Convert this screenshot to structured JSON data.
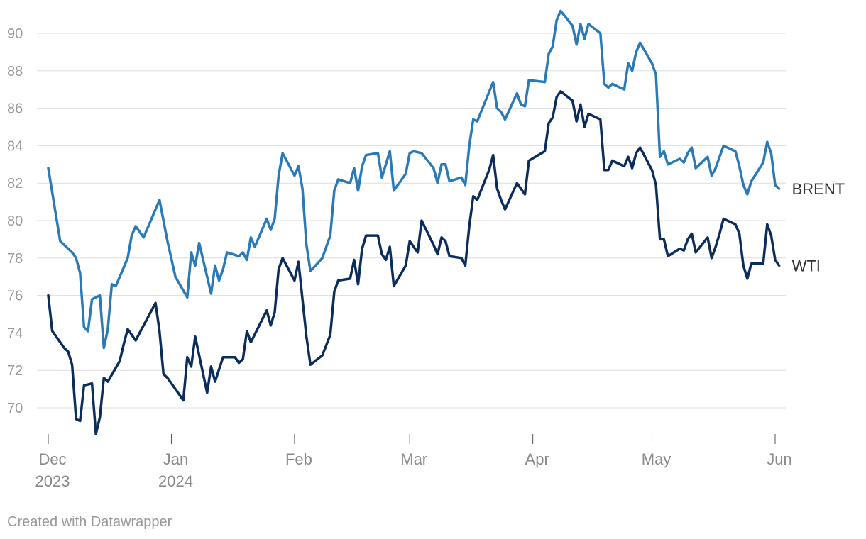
{
  "chart_data": {
    "type": "line",
    "title": "",
    "xlabel": "",
    "ylabel": "",
    "x_range": [
      "2023-12-01",
      "2024-06-01"
    ],
    "ylim": [
      68.6,
      91.4
    ],
    "y_ticks": [
      70,
      72,
      74,
      76,
      78,
      80,
      82,
      84,
      86,
      88,
      90
    ],
    "grid": true,
    "x_ticks": [
      {
        "date": "2023-12-01",
        "label": "Dec",
        "sublabel": "2023"
      },
      {
        "date": "2024-01-01",
        "label": "Jan",
        "sublabel": "2024"
      },
      {
        "date": "2024-02-01",
        "label": "Feb",
        "sublabel": ""
      },
      {
        "date": "2024-03-01",
        "label": "Mar",
        "sublabel": ""
      },
      {
        "date": "2024-04-01",
        "label": "Apr",
        "sublabel": ""
      },
      {
        "date": "2024-05-01",
        "label": "May",
        "sublabel": ""
      },
      {
        "date": "2024-06-01",
        "label": "Jun",
        "sublabel": ""
      }
    ],
    "legend": "direct labels at line ends",
    "series": [
      {
        "name": "BRENT",
        "color": "#2a7ab8",
        "points": [
          [
            "2023-12-01",
            82.8
          ],
          [
            "2023-12-04",
            78.9
          ],
          [
            "2023-12-05",
            78.7
          ],
          [
            "2023-12-06",
            78.5
          ],
          [
            "2023-12-07",
            78.3
          ],
          [
            "2023-12-08",
            78.0
          ],
          [
            "2023-12-09",
            77.2
          ],
          [
            "2023-12-10",
            74.3
          ],
          [
            "2023-12-11",
            74.1
          ],
          [
            "2023-12-12",
            75.8
          ],
          [
            "2023-12-14",
            76.0
          ],
          [
            "2023-12-15",
            73.2
          ],
          [
            "2023-12-16",
            74.2
          ],
          [
            "2023-12-17",
            76.6
          ],
          [
            "2023-12-18",
            76.5
          ],
          [
            "2023-12-21",
            78.0
          ],
          [
            "2023-12-22",
            79.2
          ],
          [
            "2023-12-23",
            79.7
          ],
          [
            "2023-12-25",
            79.1
          ],
          [
            "2023-12-29",
            81.1
          ],
          [
            "2023-12-31",
            78.9
          ],
          [
            "2024-01-02",
            77.0
          ],
          [
            "2024-01-05",
            75.9
          ],
          [
            "2024-01-06",
            78.3
          ],
          [
            "2024-01-07",
            77.6
          ],
          [
            "2024-01-08",
            78.8
          ],
          [
            "2024-01-11",
            76.1
          ],
          [
            "2024-01-12",
            77.6
          ],
          [
            "2024-01-13",
            76.8
          ],
          [
            "2024-01-14",
            77.4
          ],
          [
            "2024-01-15",
            78.3
          ],
          [
            "2024-01-18",
            78.1
          ],
          [
            "2024-01-19",
            78.3
          ],
          [
            "2024-01-20",
            77.9
          ],
          [
            "2024-01-21",
            79.1
          ],
          [
            "2024-01-22",
            78.6
          ],
          [
            "2024-01-25",
            80.1
          ],
          [
            "2024-01-26",
            79.5
          ],
          [
            "2024-01-27",
            80.1
          ],
          [
            "2024-01-28",
            82.4
          ],
          [
            "2024-01-29",
            83.6
          ],
          [
            "2024-02-01",
            82.4
          ],
          [
            "2024-02-02",
            82.9
          ],
          [
            "2024-02-03",
            81.7
          ],
          [
            "2024-02-04",
            78.7
          ],
          [
            "2024-02-05",
            77.3
          ],
          [
            "2024-02-08",
            78.0
          ],
          [
            "2024-02-10",
            79.2
          ],
          [
            "2024-02-11",
            81.6
          ],
          [
            "2024-02-12",
            82.2
          ],
          [
            "2024-02-15",
            82.0
          ],
          [
            "2024-02-16",
            82.8
          ],
          [
            "2024-02-17",
            81.6
          ],
          [
            "2024-02-18",
            82.9
          ],
          [
            "2024-02-19",
            83.5
          ],
          [
            "2024-02-22",
            83.6
          ],
          [
            "2024-02-23",
            82.3
          ],
          [
            "2024-02-25",
            83.7
          ],
          [
            "2024-02-26",
            81.6
          ],
          [
            "2024-02-29",
            82.5
          ],
          [
            "2024-03-01",
            83.6
          ],
          [
            "2024-03-02",
            83.7
          ],
          [
            "2024-03-04",
            83.6
          ],
          [
            "2024-03-07",
            82.8
          ],
          [
            "2024-03-08",
            82.0
          ],
          [
            "2024-03-09",
            83.0
          ],
          [
            "2024-03-10",
            83.0
          ],
          [
            "2024-03-11",
            82.1
          ],
          [
            "2024-03-14",
            82.3
          ],
          [
            "2024-03-15",
            81.9
          ],
          [
            "2024-03-16",
            84.0
          ],
          [
            "2024-03-17",
            85.4
          ],
          [
            "2024-03-18",
            85.3
          ],
          [
            "2024-03-22",
            87.4
          ],
          [
            "2024-03-23",
            86.0
          ],
          [
            "2024-03-24",
            85.8
          ],
          [
            "2024-03-25",
            85.4
          ],
          [
            "2024-03-28",
            86.8
          ],
          [
            "2024-03-29",
            86.2
          ],
          [
            "2024-03-30",
            86.1
          ],
          [
            "2024-03-31",
            87.5
          ],
          [
            "2024-04-04",
            87.4
          ],
          [
            "2024-04-05",
            88.9
          ],
          [
            "2024-04-06",
            89.3
          ],
          [
            "2024-04-07",
            90.7
          ],
          [
            "2024-04-08",
            91.2
          ],
          [
            "2024-04-11",
            90.4
          ],
          [
            "2024-04-12",
            89.4
          ],
          [
            "2024-04-13",
            90.5
          ],
          [
            "2024-04-14",
            89.7
          ],
          [
            "2024-04-15",
            90.5
          ],
          [
            "2024-04-18",
            90.0
          ],
          [
            "2024-04-19",
            87.3
          ],
          [
            "2024-04-20",
            87.1
          ],
          [
            "2024-04-21",
            87.3
          ],
          [
            "2024-04-24",
            87.0
          ],
          [
            "2024-04-25",
            88.4
          ],
          [
            "2024-04-26",
            88.0
          ],
          [
            "2024-04-27",
            89.0
          ],
          [
            "2024-04-28",
            89.5
          ],
          [
            "2024-05-01",
            88.4
          ],
          [
            "2024-05-02",
            87.8
          ],
          [
            "2024-05-03",
            83.4
          ],
          [
            "2024-05-04",
            83.7
          ],
          [
            "2024-05-05",
            83.0
          ],
          [
            "2024-05-08",
            83.3
          ],
          [
            "2024-05-09",
            83.1
          ],
          [
            "2024-05-10",
            83.6
          ],
          [
            "2024-05-11",
            83.9
          ],
          [
            "2024-05-12",
            82.8
          ],
          [
            "2024-05-15",
            83.4
          ],
          [
            "2024-05-16",
            82.4
          ],
          [
            "2024-05-17",
            82.8
          ],
          [
            "2024-05-18",
            83.4
          ],
          [
            "2024-05-19",
            84.0
          ],
          [
            "2024-05-22",
            83.7
          ],
          [
            "2024-05-23",
            82.9
          ],
          [
            "2024-05-24",
            81.9
          ],
          [
            "2024-05-25",
            81.4
          ],
          [
            "2024-05-26",
            82.1
          ],
          [
            "2024-05-29",
            83.1
          ],
          [
            "2024-05-30",
            84.2
          ],
          [
            "2024-05-31",
            83.6
          ],
          [
            "2024-06-01",
            81.9
          ],
          [
            "2024-06-02",
            81.7
          ]
        ]
      },
      {
        "name": "WTI",
        "color": "#0b2d5b",
        "points": [
          [
            "2023-12-01",
            76.0
          ],
          [
            "2023-12-02",
            74.1
          ],
          [
            "2023-12-05",
            73.2
          ],
          [
            "2023-12-06",
            73.0
          ],
          [
            "2023-12-07",
            72.3
          ],
          [
            "2023-12-08",
            69.4
          ],
          [
            "2023-12-09",
            69.3
          ],
          [
            "2023-12-10",
            71.2
          ],
          [
            "2023-12-12",
            71.3
          ],
          [
            "2023-12-13",
            68.6
          ],
          [
            "2023-12-14",
            69.5
          ],
          [
            "2023-12-15",
            71.6
          ],
          [
            "2023-12-16",
            71.4
          ],
          [
            "2023-12-19",
            72.5
          ],
          [
            "2023-12-20",
            73.4
          ],
          [
            "2023-12-21",
            74.2
          ],
          [
            "2023-12-23",
            73.6
          ],
          [
            "2023-12-28",
            75.6
          ],
          [
            "2023-12-29",
            74.1
          ],
          [
            "2023-12-30",
            71.8
          ],
          [
            "2023-12-31",
            71.6
          ],
          [
            "2024-01-04",
            70.4
          ],
          [
            "2024-01-05",
            72.7
          ],
          [
            "2024-01-06",
            72.2
          ],
          [
            "2024-01-07",
            73.8
          ],
          [
            "2024-01-10",
            70.8
          ],
          [
            "2024-01-11",
            72.2
          ],
          [
            "2024-01-12",
            71.4
          ],
          [
            "2024-01-14",
            72.7
          ],
          [
            "2024-01-17",
            72.7
          ],
          [
            "2024-01-18",
            72.4
          ],
          [
            "2024-01-19",
            72.6
          ],
          [
            "2024-01-20",
            74.1
          ],
          [
            "2024-01-21",
            73.5
          ],
          [
            "2024-01-25",
            75.2
          ],
          [
            "2024-01-26",
            74.4
          ],
          [
            "2024-01-27",
            75.1
          ],
          [
            "2024-01-28",
            77.4
          ],
          [
            "2024-01-29",
            78.0
          ],
          [
            "2024-02-01",
            76.8
          ],
          [
            "2024-02-02",
            77.8
          ],
          [
            "2024-02-04",
            73.8
          ],
          [
            "2024-02-05",
            72.3
          ],
          [
            "2024-02-08",
            72.8
          ],
          [
            "2024-02-10",
            73.9
          ],
          [
            "2024-02-11",
            76.2
          ],
          [
            "2024-02-12",
            76.8
          ],
          [
            "2024-02-15",
            76.9
          ],
          [
            "2024-02-16",
            77.9
          ],
          [
            "2024-02-17",
            76.6
          ],
          [
            "2024-02-18",
            78.5
          ],
          [
            "2024-02-19",
            79.2
          ],
          [
            "2024-02-22",
            79.2
          ],
          [
            "2024-02-23",
            78.2
          ],
          [
            "2024-02-24",
            77.9
          ],
          [
            "2024-02-25",
            78.6
          ],
          [
            "2024-02-26",
            76.5
          ],
          [
            "2024-02-29",
            77.6
          ],
          [
            "2024-03-01",
            78.9
          ],
          [
            "2024-03-03",
            78.3
          ],
          [
            "2024-03-04",
            80.0
          ],
          [
            "2024-03-07",
            78.7
          ],
          [
            "2024-03-08",
            78.2
          ],
          [
            "2024-03-09",
            79.1
          ],
          [
            "2024-03-10",
            78.9
          ],
          [
            "2024-03-11",
            78.1
          ],
          [
            "2024-03-14",
            78.0
          ],
          [
            "2024-03-15",
            77.6
          ],
          [
            "2024-03-16",
            79.7
          ],
          [
            "2024-03-17",
            81.3
          ],
          [
            "2024-03-18",
            81.1
          ],
          [
            "2024-03-21",
            82.7
          ],
          [
            "2024-03-22",
            83.5
          ],
          [
            "2024-03-23",
            81.7
          ],
          [
            "2024-03-24",
            81.1
          ],
          [
            "2024-03-25",
            80.6
          ],
          [
            "2024-03-28",
            82.0
          ],
          [
            "2024-03-30",
            81.4
          ],
          [
            "2024-03-31",
            83.2
          ],
          [
            "2024-04-04",
            83.7
          ],
          [
            "2024-04-05",
            85.2
          ],
          [
            "2024-04-06",
            85.5
          ],
          [
            "2024-04-07",
            86.6
          ],
          [
            "2024-04-08",
            86.9
          ],
          [
            "2024-04-11",
            86.4
          ],
          [
            "2024-04-12",
            85.3
          ],
          [
            "2024-04-13",
            86.2
          ],
          [
            "2024-04-14",
            85.0
          ],
          [
            "2024-04-15",
            85.7
          ],
          [
            "2024-04-18",
            85.4
          ],
          [
            "2024-04-19",
            82.7
          ],
          [
            "2024-04-20",
            82.7
          ],
          [
            "2024-04-21",
            83.2
          ],
          [
            "2024-04-24",
            82.9
          ],
          [
            "2024-04-25",
            83.4
          ],
          [
            "2024-04-26",
            82.8
          ],
          [
            "2024-04-27",
            83.6
          ],
          [
            "2024-04-28",
            83.9
          ],
          [
            "2024-05-01",
            82.7
          ],
          [
            "2024-05-02",
            81.9
          ],
          [
            "2024-05-03",
            79.0
          ],
          [
            "2024-05-04",
            79.0
          ],
          [
            "2024-05-05",
            78.1
          ],
          [
            "2024-05-08",
            78.5
          ],
          [
            "2024-05-09",
            78.4
          ],
          [
            "2024-05-10",
            79.0
          ],
          [
            "2024-05-11",
            79.3
          ],
          [
            "2024-05-12",
            78.3
          ],
          [
            "2024-05-15",
            79.1
          ],
          [
            "2024-05-16",
            78.0
          ],
          [
            "2024-05-17",
            78.6
          ],
          [
            "2024-05-18",
            79.3
          ],
          [
            "2024-05-19",
            80.1
          ],
          [
            "2024-05-22",
            79.8
          ],
          [
            "2024-05-23",
            79.3
          ],
          [
            "2024-05-24",
            77.6
          ],
          [
            "2024-05-25",
            76.9
          ],
          [
            "2024-05-26",
            77.7
          ],
          [
            "2024-05-29",
            77.7
          ],
          [
            "2024-05-30",
            79.8
          ],
          [
            "2024-05-31",
            79.2
          ],
          [
            "2024-06-01",
            77.9
          ],
          [
            "2024-06-02",
            77.6
          ]
        ]
      }
    ]
  },
  "footer": {
    "credit": "Created with Datawrapper"
  }
}
